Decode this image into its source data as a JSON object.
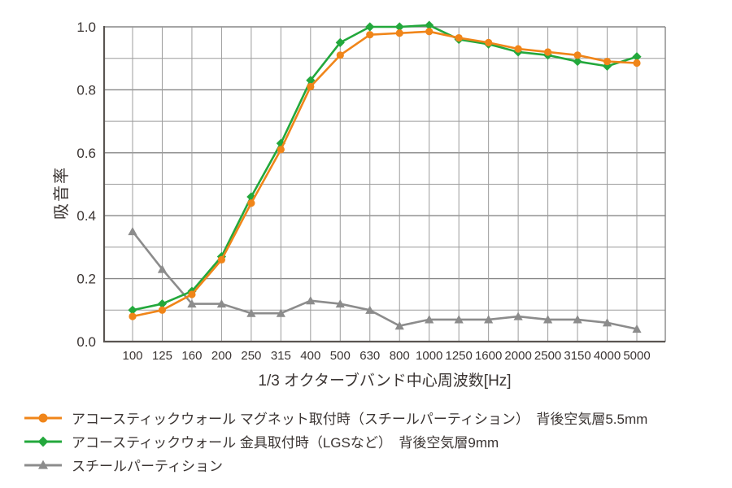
{
  "page": {
    "background": "#FFFFFF",
    "text_color": "#3B3533"
  },
  "chart_data": {
    "type": "line",
    "title": "",
    "xlabel": "1/3 オクターブバンド中心周波数[Hz]",
    "ylabel": "吸音率",
    "categories": [
      "100",
      "125",
      "160",
      "200",
      "250",
      "315",
      "400",
      "500",
      "630",
      "800",
      "1000",
      "1250",
      "1600",
      "2000",
      "2500",
      "3150",
      "4000",
      "5000"
    ],
    "ylim": [
      0.0,
      1.0
    ],
    "ytick_step": 0.2,
    "ytick_labels": [
      "0.0",
      "0.2",
      "0.4",
      "0.6",
      "0.8",
      "1.0"
    ],
    "grid": true,
    "grid_minor_step": 0.1,
    "legend_position": "bottom-left",
    "axis_color": "#5A5552",
    "grid_major_color": "#878787",
    "grid_minor_color": "#9C9C9C",
    "series": [
      {
        "name": "アコースティックウォール マグネット取付時（スチールパーティション）　背後空気層5.5mm",
        "color": "#F08519",
        "marker": "circle",
        "values": [
          0.08,
          0.1,
          0.15,
          0.26,
          0.44,
          0.61,
          0.81,
          0.91,
          0.975,
          0.98,
          0.985,
          0.965,
          0.95,
          0.93,
          0.92,
          0.91,
          0.89,
          0.885
        ]
      },
      {
        "name": "アコースティックウォール 金具取付時（LGSなど）　背後空気層9mm",
        "color": "#23A83C",
        "marker": "diamond",
        "values": [
          0.1,
          0.12,
          0.16,
          0.27,
          0.46,
          0.63,
          0.83,
          0.95,
          1.0,
          1.0,
          1.005,
          0.96,
          0.945,
          0.92,
          0.91,
          0.89,
          0.875,
          0.905
        ]
      },
      {
        "name": "スチールパーティション",
        "color": "#8C8C8C",
        "marker": "triangle",
        "values": [
          0.35,
          0.23,
          0.12,
          0.12,
          0.09,
          0.09,
          0.13,
          0.12,
          0.1,
          0.05,
          0.07,
          0.07,
          0.07,
          0.08,
          0.07,
          0.07,
          0.06,
          0.04
        ]
      }
    ]
  }
}
